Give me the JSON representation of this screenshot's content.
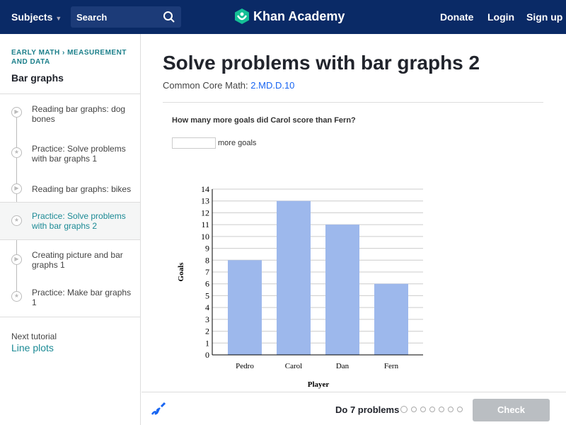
{
  "header": {
    "subjects": "Subjects",
    "search_placeholder": "Search",
    "logo": "Khan Academy",
    "donate": "Donate",
    "login": "Login",
    "signup": "Sign up"
  },
  "sidebar": {
    "breadcrumb": "EARLY MATH › MEASUREMENT AND DATA",
    "title": "Bar graphs",
    "items": [
      {
        "label": "Reading bar graphs: dog bones",
        "type": "video"
      },
      {
        "label": "Practice: Solve problems with bar graphs 1",
        "type": "practice"
      },
      {
        "label": "Reading bar graphs: bikes",
        "type": "video"
      },
      {
        "label": "Practice: Solve problems with bar graphs 2",
        "type": "practice",
        "active": true
      },
      {
        "label": "Creating picture and bar graphs 1",
        "type": "video"
      },
      {
        "label": "Practice: Make bar graphs 1",
        "type": "practice"
      }
    ],
    "next_label": "Next tutorial",
    "next_link": "Line plots"
  },
  "main": {
    "title": "Solve problems with bar graphs 2",
    "standard_label": "Common Core Math:",
    "standard": "2.MD.D.10",
    "question": "How many more goals did Carol score than Fern?",
    "answer_value": "",
    "answer_suffix": "more goals"
  },
  "chart_data": {
    "type": "bar",
    "categories": [
      "Pedro",
      "Carol",
      "Dan",
      "Fern"
    ],
    "values": [
      8,
      13,
      11,
      6
    ],
    "xlabel": "Player",
    "ylabel": "Goals",
    "ylim": [
      0,
      14
    ],
    "yticks": [
      0,
      1,
      2,
      3,
      4,
      5,
      6,
      7,
      8,
      9,
      10,
      11,
      12,
      13,
      14
    ],
    "grid": true,
    "bar_color": "#9db8ec"
  },
  "footer": {
    "progress_label": "Do 7 problems",
    "problems_total": 7,
    "problems_done": 0,
    "check": "Check"
  },
  "colors": {
    "header": "#0a2a66",
    "accent": "#1b8a95",
    "link": "#1865f2"
  }
}
